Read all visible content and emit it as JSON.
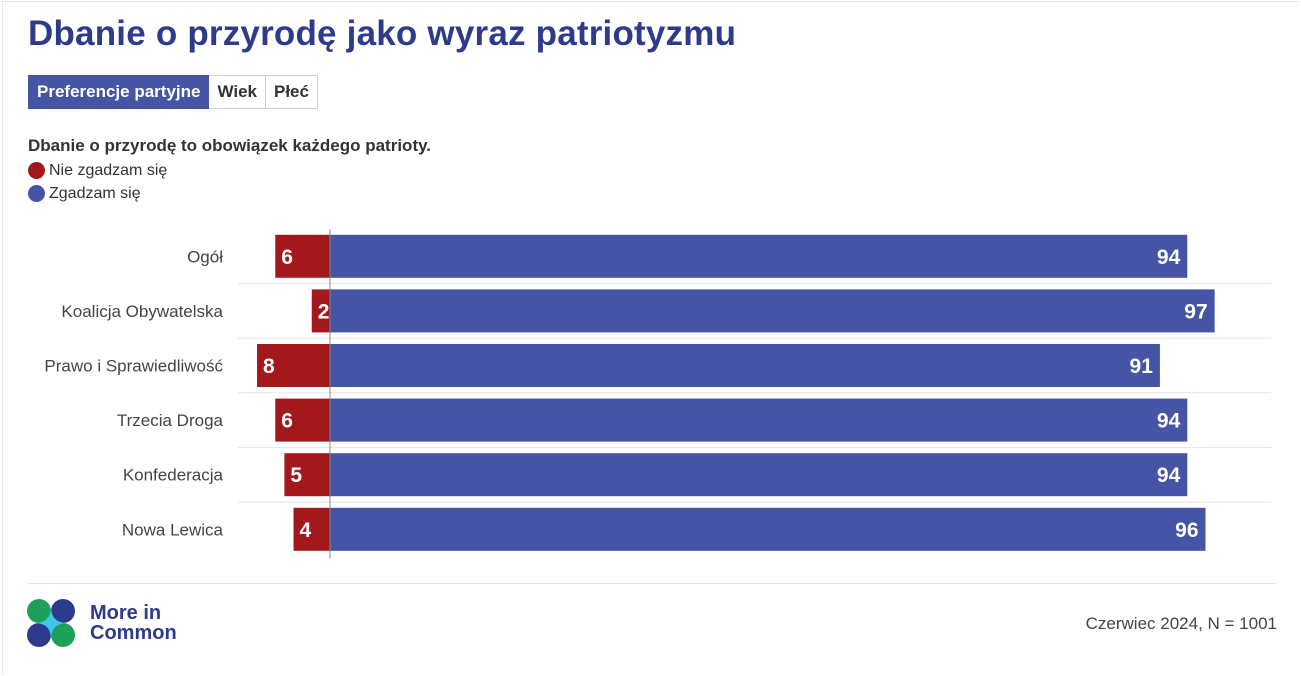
{
  "title": "Dbanie o przyrodę jako wyraz patriotyzmu",
  "tabs": [
    {
      "label": "Preferencje partyjne",
      "active": true
    },
    {
      "label": "Wiek",
      "active": false
    },
    {
      "label": "Płeć",
      "active": false
    }
  ],
  "chart_data": {
    "type": "bar",
    "orientation": "horizontal",
    "stacked": "diverging",
    "title": "Dbanie o przyrodę to obowiązek każdego patrioty.",
    "categories": [
      "Ogół",
      "Koalicja Obywatelska",
      "Prawo i Sprawiedliwość",
      "Trzecia Droga",
      "Konfederacja",
      "Nowa Lewica"
    ],
    "series": [
      {
        "name": "Nie zgadzam się",
        "color": "#a3181c",
        "values": [
          6,
          2,
          8,
          6,
          5,
          4
        ]
      },
      {
        "name": "Zgadzam się",
        "color": "#4554a4",
        "values": [
          94,
          97,
          91,
          94,
          94,
          96
        ]
      }
    ],
    "legend_position": "top-left",
    "grid": false
  },
  "footer": {
    "brand": "More in Common",
    "brand_line1": "More in",
    "brand_line2": "Common",
    "source": "Czerwiec 2024, N = 1001"
  }
}
